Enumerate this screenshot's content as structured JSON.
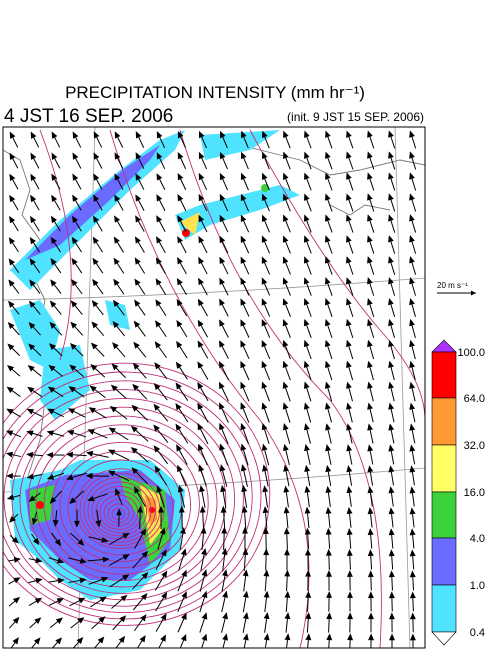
{
  "header": {
    "title": "PRECIPITATION INTENSITY (mm hr⁻¹)",
    "valid_time": "4 JST 16 SEP. 2006",
    "init_time": "(init. 9 JST 15 SEP. 2006)"
  },
  "wind_scale": {
    "label": "20 m s⁻¹"
  },
  "colorbar": {
    "labels": [
      "100.0",
      "64.0",
      "32.0",
      "16.0",
      "4.0",
      "1.0",
      "0.4"
    ]
  }
}
